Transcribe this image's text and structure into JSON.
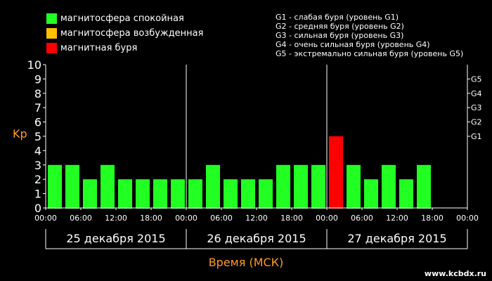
{
  "legend": {
    "items": [
      {
        "label": "магнитосфера спокойная",
        "color": "#22ff22"
      },
      {
        "label": "магнитосфера возбужденная",
        "color": "#ffc000"
      },
      {
        "label": "магнитная буря",
        "color": "#ff0000"
      }
    ]
  },
  "storm_legend": [
    "G1 - слабая буря (уровень G1)",
    "G2 - средняя буря (уровень G2)",
    "G3 - сильная буря (уровень G3)",
    "G4 - очень сильная буря (уровень G4)",
    "G5 - экстремально сильная буря (уровень G5)"
  ],
  "site": "www.kcbdx.ru",
  "chart_data": {
    "type": "bar",
    "ylabel": "Kp",
    "xlabel": "Время (МСК)",
    "ylim": [
      0,
      10
    ],
    "yticks": [
      "0",
      "1",
      "2",
      "3",
      "4",
      "5",
      "6",
      "7",
      "8",
      "9",
      "10"
    ],
    "right_ticks": [
      {
        "label": "G1",
        "value": 5
      },
      {
        "label": "G2",
        "value": 6
      },
      {
        "label": "G3",
        "value": 7
      },
      {
        "label": "G4",
        "value": 8
      },
      {
        "label": "G5",
        "value": 9
      }
    ],
    "xtick_labels": [
      "00:00",
      "06:00",
      "12:00",
      "18:00",
      "00:00",
      "06:00",
      "12:00",
      "18:00",
      "00:00",
      "06:00",
      "12:00",
      "18:00",
      "00:00"
    ],
    "days": [
      "25 декабря 2015",
      "26 декабря 2015",
      "27 декабря 2015"
    ],
    "colors": {
      "quiet": "#22ff22",
      "active": "#ffc000",
      "storm": "#ff0000"
    },
    "series": [
      {
        "values": [
          3,
          3,
          2,
          3,
          2,
          2,
          2,
          2,
          2,
          3,
          2,
          2,
          2,
          3,
          3,
          3,
          5,
          3,
          2,
          3,
          2,
          3,
          null,
          null
        ],
        "status": [
          "quiet",
          "quiet",
          "quiet",
          "quiet",
          "quiet",
          "quiet",
          "quiet",
          "quiet",
          "quiet",
          "quiet",
          "quiet",
          "quiet",
          "quiet",
          "quiet",
          "quiet",
          "quiet",
          "storm",
          "quiet",
          "quiet",
          "quiet",
          "quiet",
          "quiet",
          null,
          null
        ]
      }
    ]
  }
}
